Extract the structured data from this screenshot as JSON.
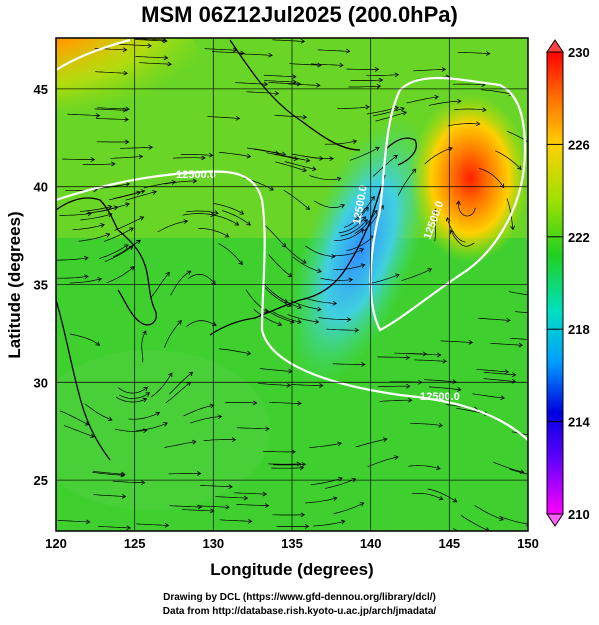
{
  "title": "MSM 06Z12Jul2025 (200.0hPa)",
  "axes": {
    "xlabel": "Longitude (degrees)",
    "ylabel": "Latitude  (degrees)",
    "x_ticks": [
      "120",
      "125",
      "130",
      "135",
      "140",
      "145",
      "150"
    ],
    "y_ticks": [
      "25",
      "30",
      "35",
      "40",
      "45"
    ],
    "xlim": [
      120,
      150
    ],
    "ylim": [
      22.4,
      47.6
    ]
  },
  "colorbar": {
    "ticks": [
      "230",
      "226",
      "222",
      "218",
      "214",
      "210"
    ],
    "range": [
      210,
      230
    ],
    "colors": [
      "#ff00ff",
      "#0000ff",
      "#00a0ff",
      "#00e0a0",
      "#20d020",
      "#a0e000",
      "#ffd000",
      "#ff8000",
      "#ff0000"
    ]
  },
  "contour_labels": [
    "12500.0",
    "12500.0",
    "12500.0",
    "12500.0"
  ],
  "credits": {
    "line1": "Drawing by DCL (https://www.gfd-dennou.org/library/dcl/)",
    "line2": "Data from http://database.rish.kyoto-u.ac.jp/arch/jmadata/"
  }
}
